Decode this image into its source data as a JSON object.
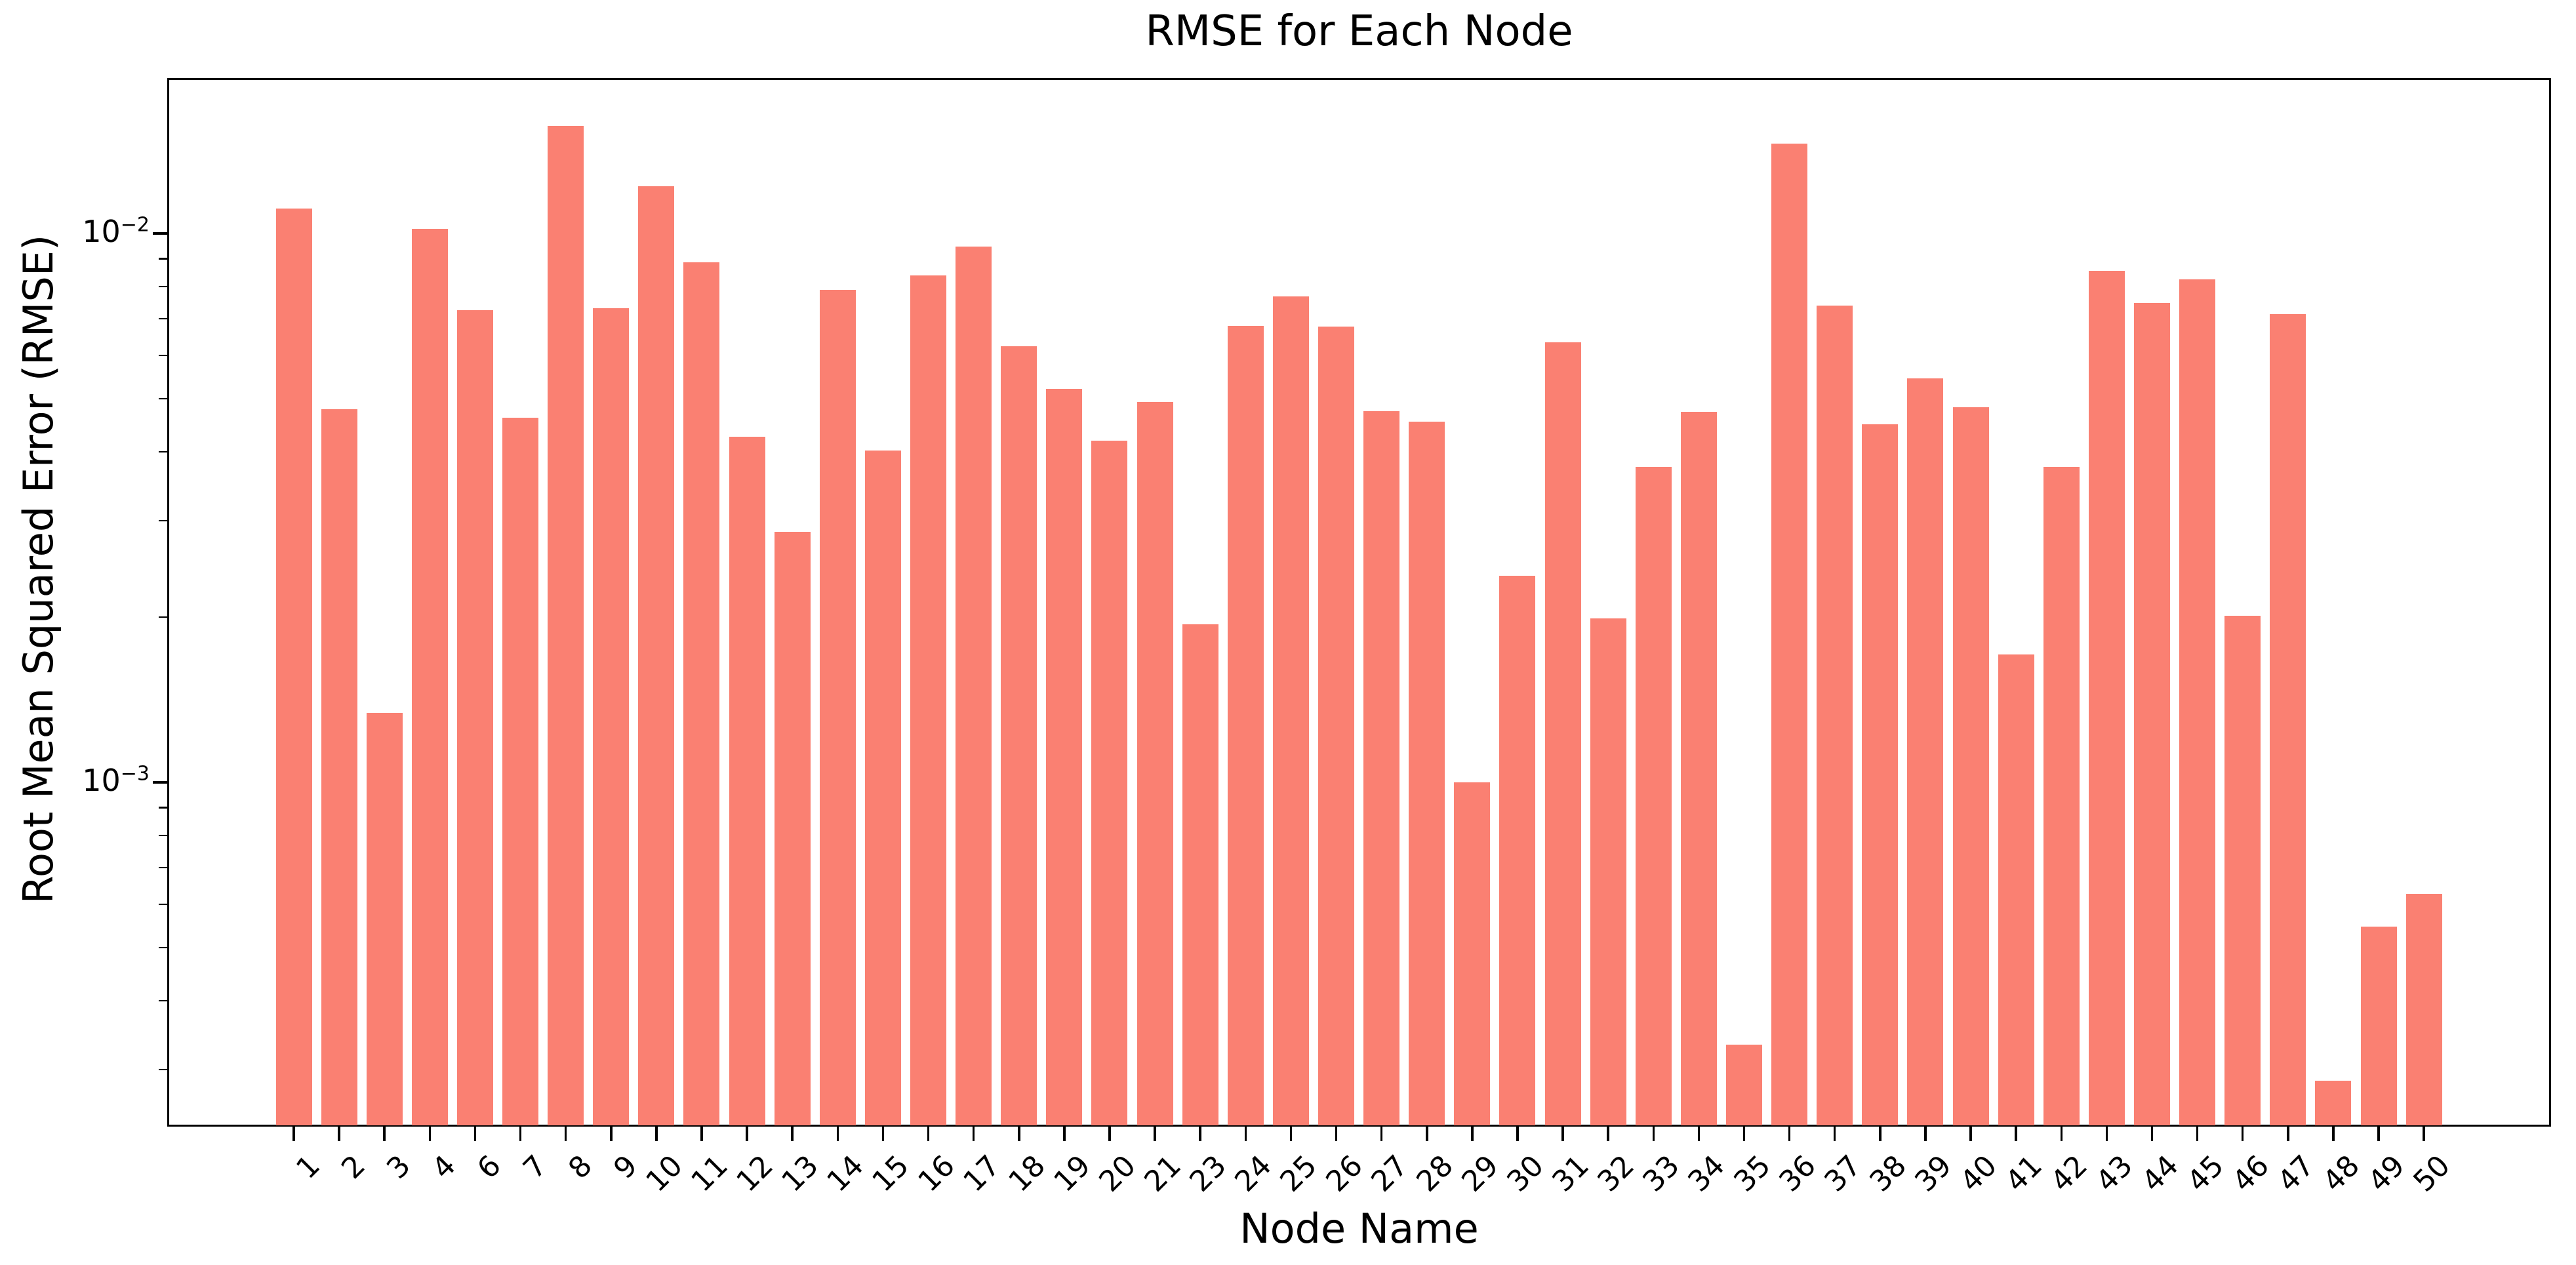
{
  "chart_data": {
    "type": "bar",
    "title": "RMSE for Each Node",
    "xlabel": "Node Name",
    "ylabel": "Root Mean Squared Error (RMSE)",
    "bar_color": "#fa8072",
    "yscale": "log",
    "ylim": [
      0.000236,
      0.0192
    ],
    "grid": false,
    "legend": null,
    "categories": [
      "1",
      "2",
      "3",
      "4",
      "6",
      "7",
      "8",
      "9",
      "10",
      "11",
      "12",
      "13",
      "14",
      "15",
      "16",
      "17",
      "18",
      "19",
      "20",
      "21",
      "23",
      "24",
      "25",
      "26",
      "27",
      "28",
      "29",
      "30",
      "31",
      "32",
      "33",
      "34",
      "35",
      "36",
      "37",
      "38",
      "39",
      "40",
      "41",
      "42",
      "43",
      "44",
      "45",
      "46",
      "47",
      "48",
      "49",
      "50"
    ],
    "values": [
      0.0111,
      0.00478,
      0.00134,
      0.0102,
      0.00725,
      0.00462,
      0.0157,
      0.00731,
      0.0122,
      0.00886,
      0.00426,
      0.00286,
      0.00789,
      0.00402,
      0.00838,
      0.00946,
      0.00623,
      0.00521,
      0.00419,
      0.00493,
      0.00194,
      0.00678,
      0.00768,
      0.00677,
      0.00474,
      0.00454,
      0.001,
      0.00238,
      0.00634,
      0.00199,
      0.00376,
      0.00473,
      0.000333,
      0.0146,
      0.00739,
      0.00449,
      0.00545,
      0.00482,
      0.00171,
      0.00376,
      0.00855,
      0.00747,
      0.00825,
      0.00201,
      0.00713,
      0.000286,
      0.000546,
      0.000627
    ],
    "ytick_major": [
      {
        "value": 0.01,
        "base": "10",
        "exponent": "−2"
      },
      {
        "value": 0.001,
        "base": "10",
        "exponent": "−3"
      }
    ],
    "ytick_minor_values": [
      0.009,
      0.008,
      0.007,
      0.006,
      0.005,
      0.004,
      0.003,
      0.002,
      0.0009,
      0.0008,
      0.0007,
      0.0006,
      0.0005,
      0.0004,
      0.0003
    ]
  }
}
